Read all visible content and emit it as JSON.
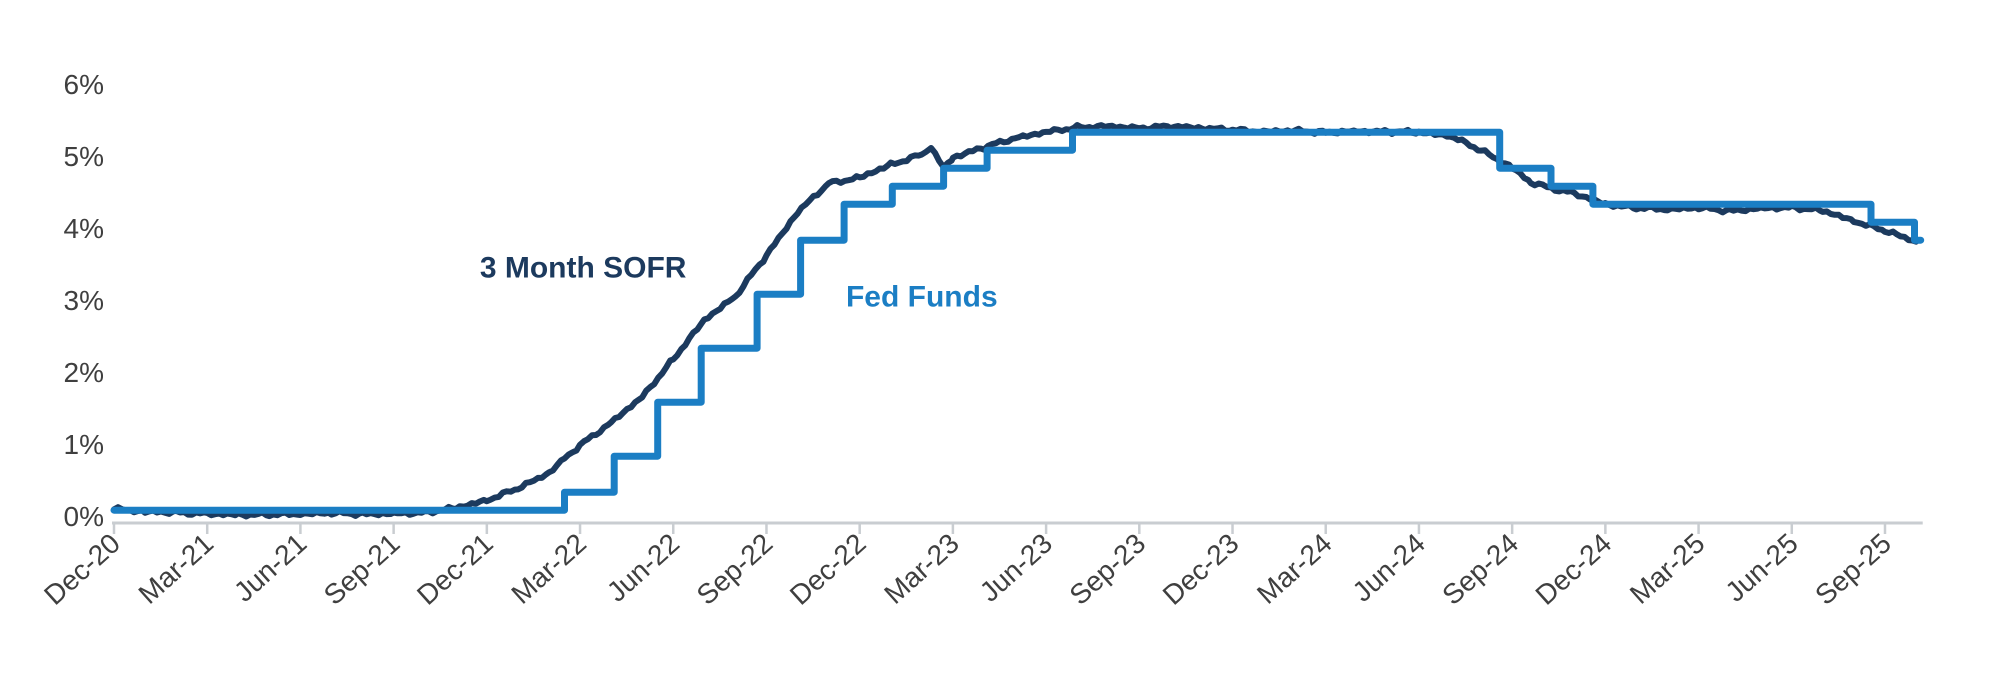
{
  "background": "#FFFFFF",
  "axis": {
    "line_color": "#C9CDD1",
    "tick_color": "#C9CDD1",
    "label_color": "#3F3F3F",
    "x_label_rotation_deg": -42
  },
  "chart_data": {
    "type": "line",
    "title": "",
    "xlabel": "",
    "ylabel": "",
    "grid": false,
    "legend_position": "inline-annotations",
    "ylim": [
      0,
      6
    ],
    "y_tick_labels": [
      "0%",
      "1%",
      "2%",
      "3%",
      "4%",
      "5%",
      "6%"
    ],
    "x_tick_labels": [
      "Dec-20",
      "Mar-21",
      "Jun-21",
      "Sep-21",
      "Dec-21",
      "Mar-22",
      "Jun-22",
      "Sep-22",
      "Dec-22",
      "Mar-23",
      "Jun-23",
      "Sep-23",
      "Dec-23",
      "Mar-24",
      "Jun-24",
      "Sep-24",
      "Dec-24",
      "Mar-25",
      "Jun-25",
      "Sep-25",
      ""
    ],
    "x_axis_unit": "months since Dec-20 tick",
    "x_end_month": 58.15,
    "series": [
      {
        "name": "3 Month SOFR",
        "label_text": "3 Month SOFR",
        "color": "#1C3A5E",
        "line_style": "daily-wiggle",
        "stroke_width": 6,
        "label_anchor_month": 15.1,
        "label_anchor_pct": 3.45,
        "points": [
          [
            0,
            0.1
          ],
          [
            1,
            0.06
          ],
          [
            2,
            0.05
          ],
          [
            3,
            0.03
          ],
          [
            4,
            0.02
          ],
          [
            5,
            0.02
          ],
          [
            6,
            0.03
          ],
          [
            7,
            0.04
          ],
          [
            8,
            0.03
          ],
          [
            9,
            0.03
          ],
          [
            10,
            0.05
          ],
          [
            11,
            0.11
          ],
          [
            12,
            0.22
          ],
          [
            13,
            0.38
          ],
          [
            14,
            0.6
          ],
          [
            14.5,
            0.8
          ],
          [
            15,
            0.98
          ],
          [
            16,
            1.3
          ],
          [
            17,
            1.65
          ],
          [
            18,
            2.18
          ],
          [
            19,
            2.72
          ],
          [
            20,
            3.05
          ],
          [
            21,
            3.62
          ],
          [
            22,
            4.22
          ],
          [
            23,
            4.62
          ],
          [
            24,
            4.7
          ],
          [
            25,
            4.88
          ],
          [
            26,
            5.02
          ],
          [
            26.3,
            5.13
          ],
          [
            26.7,
            4.82
          ],
          [
            27,
            4.98
          ],
          [
            28,
            5.12
          ],
          [
            29,
            5.25
          ],
          [
            30,
            5.33
          ],
          [
            31,
            5.4
          ],
          [
            32,
            5.41
          ],
          [
            33,
            5.39
          ],
          [
            34,
            5.41
          ],
          [
            35,
            5.39
          ],
          [
            36,
            5.36
          ],
          [
            37,
            5.34
          ],
          [
            38,
            5.35
          ],
          [
            39,
            5.33
          ],
          [
            40,
            5.34
          ],
          [
            41,
            5.34
          ],
          [
            42,
            5.33
          ],
          [
            43,
            5.28
          ],
          [
            44,
            5.08
          ],
          [
            45,
            4.84
          ],
          [
            45.6,
            4.63
          ],
          [
            46,
            4.58
          ],
          [
            47,
            4.48
          ],
          [
            48,
            4.33
          ],
          [
            49,
            4.28
          ],
          [
            50,
            4.26
          ],
          [
            51,
            4.28
          ],
          [
            52,
            4.24
          ],
          [
            53,
            4.27
          ],
          [
            54,
            4.29
          ],
          [
            55,
            4.24
          ],
          [
            56,
            4.1
          ],
          [
            57,
            3.96
          ],
          [
            57.5,
            3.89
          ],
          [
            58,
            3.81
          ]
        ]
      },
      {
        "name": "Fed Funds",
        "label_text": "Fed Funds",
        "color": "#1B7EC4",
        "line_style": "step",
        "stroke_width": 7,
        "label_anchor_month": 26.0,
        "label_anchor_pct": 3.05,
        "points": [
          [
            0,
            0.08
          ],
          [
            14.5,
            0.33
          ],
          [
            16.1,
            0.83
          ],
          [
            17.5,
            1.58
          ],
          [
            18.9,
            2.33
          ],
          [
            20.7,
            3.08
          ],
          [
            22.1,
            3.83
          ],
          [
            23.5,
            4.33
          ],
          [
            25.05,
            4.58
          ],
          [
            26.7,
            4.83
          ],
          [
            28.1,
            5.08
          ],
          [
            30.85,
            5.33
          ],
          [
            44.6,
            4.83
          ],
          [
            46.25,
            4.58
          ],
          [
            47.6,
            4.33
          ],
          [
            56.55,
            4.08
          ],
          [
            57.95,
            3.83
          ]
        ]
      }
    ]
  }
}
